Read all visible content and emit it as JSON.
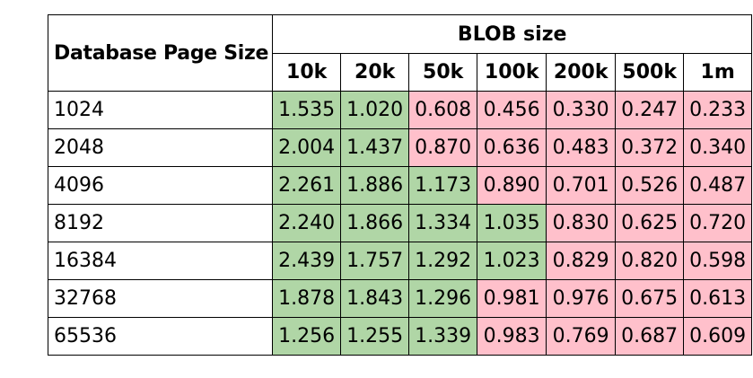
{
  "table": {
    "row_header": "Database Page Size",
    "group_header": "BLOB size",
    "columns": [
      "10k",
      "20k",
      "50k",
      "100k",
      "200k",
      "500k",
      "1m"
    ],
    "threshold": 1.0,
    "colors": {
      "above_threshold": "#b0d6a6",
      "below_threshold": "#ffc0cb"
    },
    "rows": [
      {
        "label": "1024",
        "values": [
          "1.535",
          "1.020",
          "0.608",
          "0.456",
          "0.330",
          "0.247",
          "0.233"
        ]
      },
      {
        "label": "2048",
        "values": [
          "2.004",
          "1.437",
          "0.870",
          "0.636",
          "0.483",
          "0.372",
          "0.340"
        ]
      },
      {
        "label": "4096",
        "values": [
          "2.261",
          "1.886",
          "1.173",
          "0.890",
          "0.701",
          "0.526",
          "0.487"
        ]
      },
      {
        "label": "8192",
        "values": [
          "2.240",
          "1.866",
          "1.334",
          "1.035",
          "0.830",
          "0.625",
          "0.720"
        ]
      },
      {
        "label": "16384",
        "values": [
          "2.439",
          "1.757",
          "1.292",
          "1.023",
          "0.829",
          "0.820",
          "0.598"
        ]
      },
      {
        "label": "32768",
        "values": [
          "1.878",
          "1.843",
          "1.296",
          "0.981",
          "0.976",
          "0.675",
          "0.613"
        ]
      },
      {
        "label": "65536",
        "values": [
          "1.256",
          "1.255",
          "1.339",
          "0.983",
          "0.769",
          "0.687",
          "0.609"
        ]
      }
    ]
  }
}
